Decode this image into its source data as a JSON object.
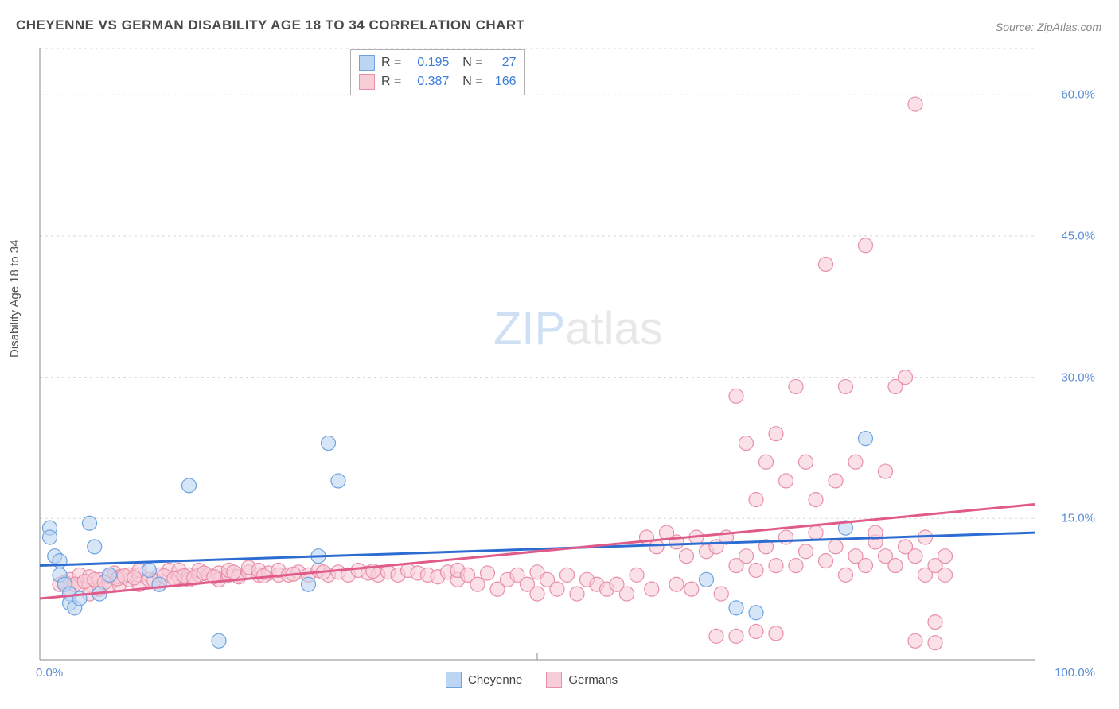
{
  "title": "CHEYENNE VS GERMAN DISABILITY AGE 18 TO 34 CORRELATION CHART",
  "source": "Source: ZipAtlas.com",
  "ylabel": "Disability Age 18 to 34",
  "watermark_zip": "ZIP",
  "watermark_atlas": "atlas",
  "chart": {
    "type": "scatter",
    "xlim": [
      0,
      100
    ],
    "ylim": [
      0,
      65
    ],
    "y_ticks": [
      15.0,
      30.0,
      45.0,
      60.0
    ],
    "y_tick_labels": [
      "15.0%",
      "30.0%",
      "45.0%",
      "60.0%"
    ],
    "x_ticks": [
      0.0,
      100.0
    ],
    "x_tick_labels": [
      "0.0%",
      "100.0%"
    ],
    "x_minor_ticks": [
      50,
      75
    ],
    "grid_color": "#d8d8d8",
    "axis_color": "#888888",
    "background_color": "#ffffff",
    "marker_radius": 9,
    "series": [
      {
        "name": "Cheyenne",
        "color_fill": "#bcd5f2",
        "color_stroke": "#6fa3e0",
        "R": "0.195",
        "N": "27",
        "trend": {
          "y_at_x0": 10.0,
          "y_at_x100": 13.5,
          "stroke": "#2d6cd1",
          "width": 3
        },
        "points": [
          [
            1,
            14
          ],
          [
            1,
            13
          ],
          [
            1.5,
            11
          ],
          [
            2,
            9
          ],
          [
            2,
            10.5
          ],
          [
            2.5,
            8
          ],
          [
            3,
            7
          ],
          [
            3,
            6
          ],
          [
            3.5,
            5.5
          ],
          [
            4,
            6.5
          ],
          [
            5,
            14.5
          ],
          [
            5.5,
            12
          ],
          [
            6,
            7
          ],
          [
            7,
            9
          ],
          [
            11,
            9.5
          ],
          [
            12,
            8
          ],
          [
            15,
            18.5
          ],
          [
            18,
            2
          ],
          [
            27,
            8
          ],
          [
            28,
            11
          ],
          [
            29,
            23
          ],
          [
            30,
            19
          ],
          [
            67,
            8.5
          ],
          [
            70,
            5.5
          ],
          [
            72,
            5
          ],
          [
            81,
            14
          ],
          [
            83,
            23.5
          ]
        ]
      },
      {
        "name": "Germans",
        "color_fill": "#f7cdd8",
        "color_stroke": "#e88fa8",
        "R": "0.387",
        "N": "166",
        "trend": {
          "y_at_x0": 6.5,
          "y_at_x100": 16.5,
          "stroke": "#e05a8a",
          "width": 3
        },
        "points": [
          [
            2,
            8
          ],
          [
            3,
            8.5
          ],
          [
            3,
            7.5
          ],
          [
            4,
            8
          ],
          [
            4,
            9
          ],
          [
            5,
            8
          ],
          [
            5,
            8.8
          ],
          [
            5,
            7
          ],
          [
            6,
            7.5
          ],
          [
            6,
            8.5
          ],
          [
            7,
            8
          ],
          [
            7,
            8.8
          ],
          [
            7.5,
            9.2
          ],
          [
            8,
            8
          ],
          [
            8,
            8.8
          ],
          [
            9,
            8.5
          ],
          [
            9,
            9
          ],
          [
            10,
            8
          ],
          [
            10,
            9
          ],
          [
            10,
            9.5
          ],
          [
            11,
            8.5
          ],
          [
            12,
            8
          ],
          [
            12,
            9
          ],
          [
            13,
            8.5
          ],
          [
            13,
            9.5
          ],
          [
            14,
            8.8
          ],
          [
            14,
            9.5
          ],
          [
            15,
            9
          ],
          [
            15,
            8.5
          ],
          [
            16,
            9
          ],
          [
            16,
            9.5
          ],
          [
            17,
            9
          ],
          [
            18,
            9.2
          ],
          [
            18,
            8.5
          ],
          [
            19,
            9
          ],
          [
            19,
            9.5
          ],
          [
            20,
            9
          ],
          [
            20,
            8.8
          ],
          [
            21,
            9.3
          ],
          [
            21,
            9.8
          ],
          [
            22,
            9
          ],
          [
            22,
            9.5
          ],
          [
            23,
            9.2
          ],
          [
            24,
            9
          ],
          [
            24,
            9.5
          ],
          [
            25,
            9
          ],
          [
            26,
            9.3
          ],
          [
            27,
            9
          ],
          [
            28,
            9.5
          ],
          [
            29,
            9
          ],
          [
            30,
            9.3
          ],
          [
            31,
            9
          ],
          [
            32,
            9.5
          ],
          [
            33,
            9.2
          ],
          [
            34,
            9
          ],
          [
            35,
            9.3
          ],
          [
            36,
            9
          ],
          [
            37,
            9.5
          ],
          [
            38,
            9.2
          ],
          [
            39,
            9
          ],
          [
            40,
            8.8
          ],
          [
            41,
            9.3
          ],
          [
            42,
            8.5
          ],
          [
            42,
            9.5
          ],
          [
            43,
            9
          ],
          [
            44,
            8
          ],
          [
            45,
            9.2
          ],
          [
            46,
            7.5
          ],
          [
            47,
            8.5
          ],
          [
            48,
            9
          ],
          [
            49,
            8
          ],
          [
            50,
            9.3
          ],
          [
            50,
            7
          ],
          [
            51,
            8.5
          ],
          [
            52,
            7.5
          ],
          [
            53,
            9
          ],
          [
            54,
            7
          ],
          [
            55,
            8.5
          ],
          [
            56,
            8
          ],
          [
            57,
            7.5
          ],
          [
            58,
            8
          ],
          [
            59,
            7
          ],
          [
            60,
            9
          ],
          [
            61,
            13
          ],
          [
            61.5,
            7.5
          ],
          [
            62,
            12
          ],
          [
            63,
            13.5
          ],
          [
            64,
            12.5
          ],
          [
            64,
            8
          ],
          [
            65,
            11
          ],
          [
            65.5,
            7.5
          ],
          [
            66,
            13
          ],
          [
            67,
            11.5
          ],
          [
            68,
            12
          ],
          [
            68.5,
            7
          ],
          [
            69,
            13
          ],
          [
            70,
            10
          ],
          [
            70,
            28
          ],
          [
            71,
            11
          ],
          [
            71,
            23
          ],
          [
            72,
            9.5
          ],
          [
            72,
            17
          ],
          [
            73,
            12
          ],
          [
            73,
            21
          ],
          [
            74,
            10
          ],
          [
            74,
            24
          ],
          [
            75,
            13
          ],
          [
            75,
            19
          ],
          [
            76,
            10
          ],
          [
            76,
            29
          ],
          [
            77,
            11.5
          ],
          [
            77,
            21
          ],
          [
            78,
            13.5
          ],
          [
            78,
            17
          ],
          [
            79,
            10.5
          ],
          [
            79,
            42
          ],
          [
            80,
            12
          ],
          [
            80,
            19
          ],
          [
            81,
            9
          ],
          [
            81,
            29
          ],
          [
            82,
            11
          ],
          [
            82,
            21
          ],
          [
            83,
            10
          ],
          [
            83,
            44
          ],
          [
            84,
            12.5
          ],
          [
            84,
            13.5
          ],
          [
            85,
            20
          ],
          [
            85,
            11
          ],
          [
            86,
            10
          ],
          [
            86,
            29
          ],
          [
            87,
            12
          ],
          [
            87,
            30
          ],
          [
            88,
            11
          ],
          [
            88,
            59
          ],
          [
            89,
            9
          ],
          [
            89,
            13
          ],
          [
            90,
            4
          ],
          [
            90,
            10
          ],
          [
            91,
            11
          ],
          [
            91,
            9
          ],
          [
            2.5,
            8.2
          ],
          [
            3.5,
            8
          ],
          [
            4.5,
            8.3
          ],
          [
            5.5,
            8.5
          ],
          [
            6.5,
            8.2
          ],
          [
            7.8,
            8.6
          ],
          [
            8.5,
            8.9
          ],
          [
            9.5,
            8.7
          ],
          [
            11.5,
            8.4
          ],
          [
            12.5,
            8.9
          ],
          [
            13.5,
            8.6
          ],
          [
            14.5,
            8.9
          ],
          [
            15.5,
            8.7
          ],
          [
            16.5,
            9.2
          ],
          [
            17.5,
            8.8
          ],
          [
            19.5,
            9.3
          ],
          [
            22.5,
            8.9
          ],
          [
            25.5,
            9.1
          ],
          [
            28.5,
            9.3
          ],
          [
            33.5,
            9.4
          ],
          [
            68,
            2.5
          ],
          [
            70,
            2.5
          ],
          [
            72,
            3
          ],
          [
            74,
            2.8
          ],
          [
            88,
            2
          ],
          [
            90,
            1.8
          ]
        ]
      }
    ],
    "bottom_legend": [
      {
        "label": "Cheyenne",
        "fill": "#bcd5f2",
        "stroke": "#6fa3e0"
      },
      {
        "label": "Germans",
        "fill": "#f7cdd8",
        "stroke": "#e88fa8"
      }
    ]
  }
}
